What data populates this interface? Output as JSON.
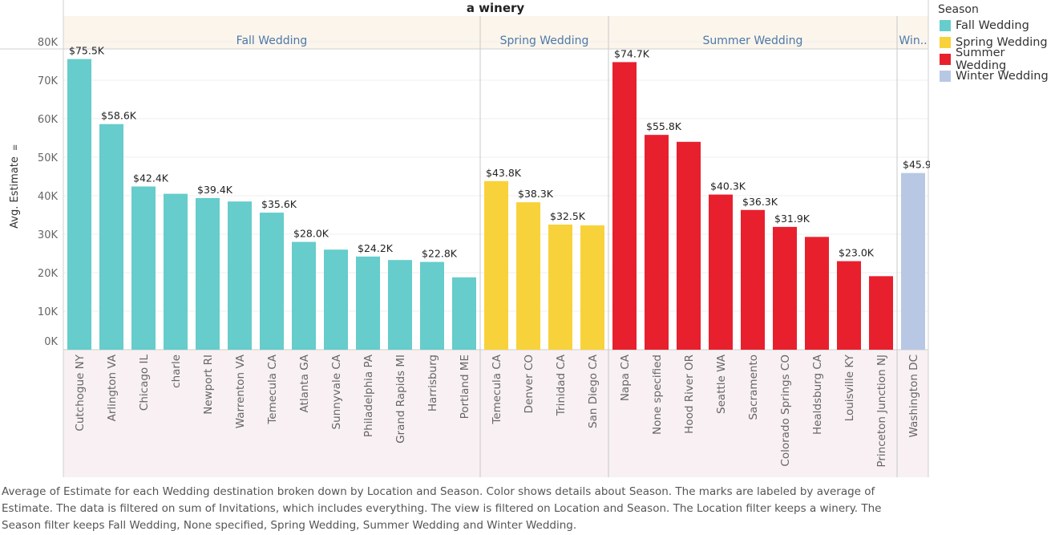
{
  "chart_data": {
    "type": "bar",
    "title": "a winery",
    "ylabel": "Avg. Estimate",
    "ylim": [
      0,
      80000
    ],
    "yticks": [
      "0K",
      "10K",
      "20K",
      "30K",
      "40K",
      "50K",
      "60K",
      "70K",
      "80K"
    ],
    "grid": true,
    "legend_placement": "top-right",
    "groups": [
      {
        "name": "Fall Wedding",
        "color": "#66cccc",
        "bars": [
          {
            "label": "Cutchogue NY",
            "value": 75500,
            "text": "$75.5K"
          },
          {
            "label": "Arlington VA",
            "value": 58600,
            "text": "$58.6K"
          },
          {
            "label": "Chicago IL",
            "value": 42400,
            "text": "$42.4K"
          },
          {
            "label": "charle",
            "value": 40500,
            "text": ""
          },
          {
            "label": "Newport RI",
            "value": 39400,
            "text": "$39.4K"
          },
          {
            "label": "Warrenton VA",
            "value": 38500,
            "text": ""
          },
          {
            "label": "Temecula CA",
            "value": 35600,
            "text": "$35.6K"
          },
          {
            "label": "Atlanta GA",
            "value": 28000,
            "text": "$28.0K"
          },
          {
            "label": "Sunnyvale CA",
            "value": 26000,
            "text": ""
          },
          {
            "label": "Philadelphia PA",
            "value": 24200,
            "text": "$24.2K"
          },
          {
            "label": "Grand Rapids MI",
            "value": 23300,
            "text": ""
          },
          {
            "label": "Harrisburg",
            "value": 22800,
            "text": "$22.8K"
          },
          {
            "label": "Portland ME",
            "value": 18800,
            "text": ""
          }
        ]
      },
      {
        "name": "Spring Wedding",
        "color": "#f8d23a",
        "bars": [
          {
            "label": "Temecula CA",
            "value": 43800,
            "text": "$43.8K"
          },
          {
            "label": "Denver CO",
            "value": 38300,
            "text": "$38.3K"
          },
          {
            "label": "Trinidad CA",
            "value": 32500,
            "text": "$32.5K"
          },
          {
            "label": "San Diego CA",
            "value": 32300,
            "text": ""
          }
        ]
      },
      {
        "name": "Summer Wedding",
        "color": "#e8202e",
        "bars": [
          {
            "label": "Napa CA",
            "value": 74700,
            "text": "$74.7K"
          },
          {
            "label": "None specified",
            "value": 55800,
            "text": "$55.8K"
          },
          {
            "label": "Hood River OR",
            "value": 54000,
            "text": ""
          },
          {
            "label": "Seattle WA",
            "value": 40300,
            "text": "$40.3K"
          },
          {
            "label": "Sacramento",
            "value": 36300,
            "text": "$36.3K"
          },
          {
            "label": "Colorado Springs CO",
            "value": 31900,
            "text": "$31.9K"
          },
          {
            "label": "Healdsburg CA",
            "value": 29300,
            "text": ""
          },
          {
            "label": "Louisville KY",
            "value": 23000,
            "text": "$23.0K"
          },
          {
            "label": "Princeton Junction NJ",
            "value": 19100,
            "text": ""
          }
        ]
      },
      {
        "name": "Win..",
        "color": "#b8c8e4",
        "bars": [
          {
            "label": "Washington DC",
            "value": 45900,
            "text": "$45.9K"
          }
        ]
      }
    ]
  },
  "legend": {
    "title": "Season",
    "items": [
      {
        "label": "Fall Wedding",
        "color": "#66cccc"
      },
      {
        "label": "Spring Wedding",
        "color": "#f8d23a"
      },
      {
        "label": "Summer Wedding",
        "color": "#e8202e"
      },
      {
        "label": "Winter Wedding",
        "color": "#b8c8e4"
      }
    ]
  },
  "caption": "Average of Estimate for each Wedding destination broken down by Location and Season.  Color shows details about Season.  The marks are labeled by average of Estimate. The data is filtered on sum of Invitations, which includes everything. The view is filtered on Location and Season. The Location filter keeps a winery. The Season filter keeps Fall Wedding, None specified, Spring Wedding, Summer Wedding and Winter Wedding."
}
